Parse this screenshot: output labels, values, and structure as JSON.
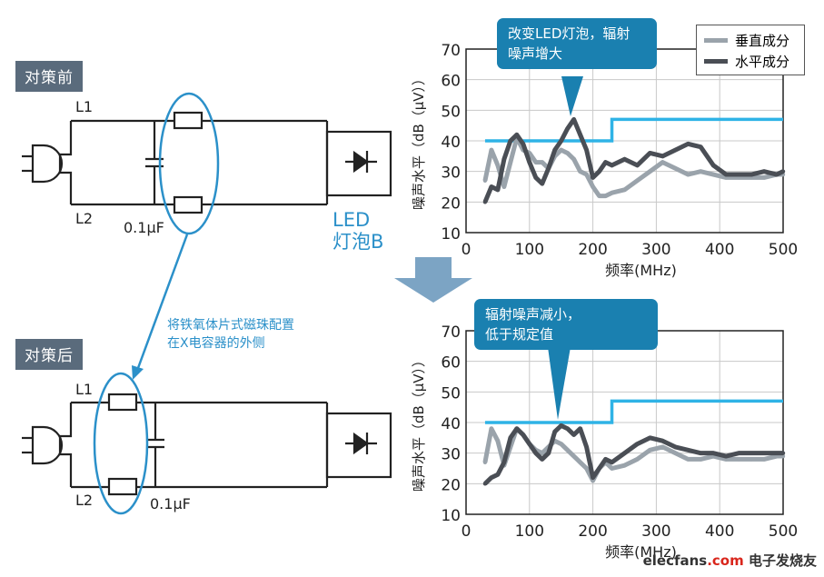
{
  "left": {
    "before_tag": "对策前",
    "after_tag": "对策后",
    "line1": "L1",
    "line2": "L2",
    "cap_before": "0.1μF",
    "cap_after": "0.1μF",
    "bulb_label_line1": "LED",
    "bulb_label_line2": "灯泡B",
    "note_line1": "将铁氧体片式磁珠配置",
    "note_line2": "在X电容器的外侧"
  },
  "colors": {
    "accent": "#2b90c9",
    "callout_bg": "#1a80b0",
    "vertical_series": "#9aa3ab",
    "horizontal_series": "#4a4e55",
    "limit_line": "#2fb3e6"
  },
  "legend": {
    "vertical": "垂直成分",
    "horizontal": "水平成分"
  },
  "callouts": {
    "top_line1": "改变LED灯泡，辐射",
    "top_line2": "噪声增大",
    "bottom_line1": "辐射噪声减小，",
    "bottom_line2": "低于规定值"
  },
  "watermark": {
    "site": "elecfans",
    "dotcom": ".com",
    "cn": "电子发烧友"
  },
  "chart_data": [
    {
      "type": "line",
      "xlabel": "频率(MHz)",
      "ylabel": "噪声水平（dB（μV））",
      "xlim": [
        0,
        500
      ],
      "ylim": [
        10,
        70
      ],
      "xticks": [
        0,
        100,
        200,
        300,
        400,
        500
      ],
      "yticks": [
        10,
        20,
        30,
        40,
        50,
        60,
        70
      ],
      "limit_line": {
        "x": [
          30,
          230,
          230,
          500
        ],
        "y": [
          40,
          40,
          47,
          47
        ]
      },
      "series": [
        {
          "name": "垂直成分",
          "x": [
            30,
            40,
            50,
            60,
            70,
            80,
            90,
            100,
            110,
            120,
            130,
            140,
            150,
            160,
            170,
            180,
            190,
            200,
            210,
            220,
            230,
            250,
            270,
            290,
            310,
            330,
            350,
            370,
            390,
            410,
            430,
            450,
            470,
            490,
            500
          ],
          "values": [
            27,
            37,
            32,
            25,
            33,
            41,
            37,
            36,
            33,
            33,
            31,
            35,
            37,
            36,
            34,
            30,
            29,
            25,
            22,
            22,
            23,
            24,
            27,
            30,
            33,
            31,
            29,
            30,
            29,
            28,
            28,
            28,
            28,
            29,
            29
          ]
        },
        {
          "name": "水平成分",
          "x": [
            30,
            40,
            50,
            60,
            70,
            80,
            90,
            100,
            110,
            120,
            130,
            140,
            150,
            160,
            170,
            180,
            190,
            200,
            210,
            220,
            230,
            250,
            270,
            290,
            310,
            330,
            350,
            370,
            390,
            410,
            430,
            450,
            470,
            490,
            500
          ],
          "values": [
            20,
            25,
            24,
            34,
            40,
            42,
            39,
            33,
            28,
            26,
            31,
            37,
            40,
            44,
            47,
            42,
            37,
            28,
            30,
            33,
            32,
            34,
            32,
            36,
            35,
            37,
            39,
            38,
            32,
            29,
            29,
            29,
            30,
            29,
            30
          ]
        }
      ]
    },
    {
      "type": "line",
      "xlabel": "频率(MHz)",
      "ylabel": "噪声水平（dB（μV））",
      "xlim": [
        0,
        500
      ],
      "ylim": [
        10,
        70
      ],
      "xticks": [
        0,
        100,
        200,
        300,
        400,
        500
      ],
      "yticks": [
        10,
        20,
        30,
        40,
        50,
        60,
        70
      ],
      "limit_line": {
        "x": [
          30,
          230,
          230,
          500
        ],
        "y": [
          40,
          40,
          47,
          47
        ]
      },
      "series": [
        {
          "name": "垂直成分",
          "x": [
            30,
            40,
            50,
            60,
            70,
            80,
            90,
            100,
            110,
            120,
            130,
            140,
            150,
            160,
            170,
            180,
            190,
            200,
            210,
            220,
            230,
            250,
            270,
            290,
            310,
            330,
            350,
            370,
            390,
            410,
            430,
            450,
            470,
            490,
            500
          ],
          "values": [
            27,
            38,
            34,
            26,
            32,
            38,
            36,
            33,
            31,
            30,
            32,
            34,
            33,
            31,
            29,
            27,
            25,
            21,
            25,
            27,
            25,
            26,
            28,
            31,
            32,
            30,
            28,
            28,
            29,
            28,
            28,
            28,
            28,
            29,
            29
          ]
        },
        {
          "name": "水平成分",
          "x": [
            30,
            40,
            50,
            60,
            70,
            80,
            90,
            100,
            110,
            120,
            130,
            140,
            150,
            160,
            170,
            180,
            190,
            200,
            210,
            220,
            230,
            250,
            270,
            290,
            310,
            330,
            350,
            370,
            390,
            410,
            430,
            450,
            470,
            490,
            500
          ],
          "values": [
            20,
            22,
            23,
            27,
            35,
            38,
            36,
            33,
            30,
            28,
            30,
            37,
            39,
            38,
            36,
            38,
            32,
            22,
            25,
            28,
            27,
            30,
            33,
            35,
            34,
            32,
            31,
            30,
            30,
            29,
            30,
            30,
            30,
            30,
            30
          ]
        }
      ]
    }
  ]
}
